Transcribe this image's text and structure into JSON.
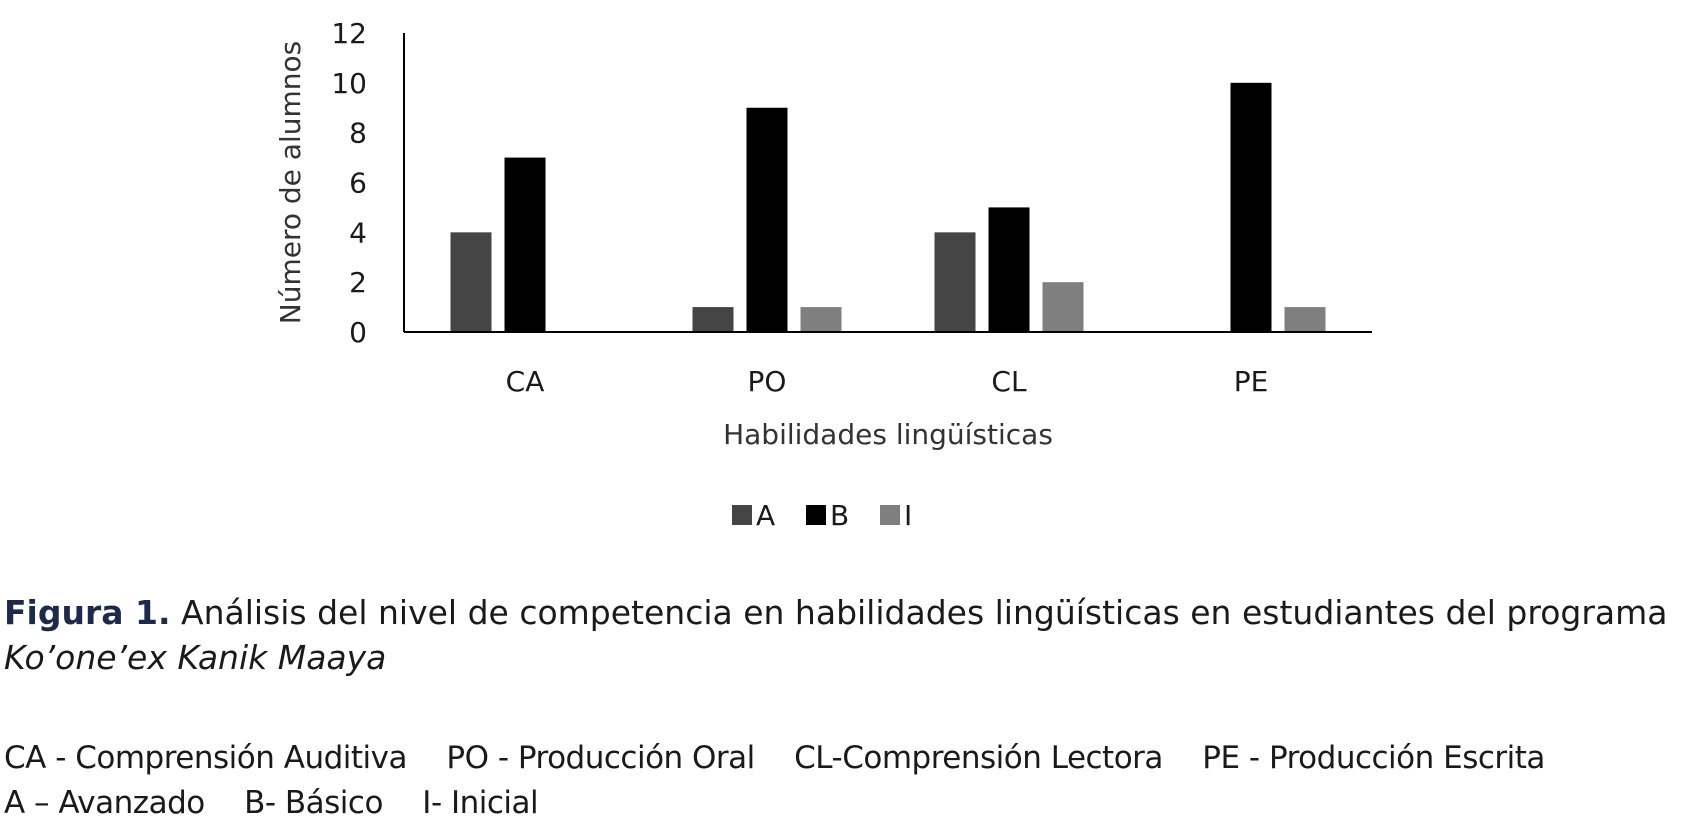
{
  "chart_data": {
    "type": "bar",
    "categories": [
      "CA",
      "PO",
      "CL",
      "PE"
    ],
    "series": [
      {
        "name": "A",
        "values": [
          4,
          1,
          4,
          0
        ],
        "color": "#454545"
      },
      {
        "name": "B",
        "values": [
          7,
          9,
          5,
          10
        ],
        "color": "#000000"
      },
      {
        "name": "I",
        "values": [
          0,
          1,
          2,
          1
        ],
        "color": "#7f7f7f"
      }
    ],
    "title": "",
    "xlabel": "Habilidades lingüísticas",
    "ylabel": "Número de alumnos",
    "ylim": [
      0,
      12
    ],
    "yticks": [
      0,
      2,
      4,
      6,
      8,
      10,
      12
    ],
    "grid": false,
    "legend_position": "bottom"
  },
  "caption": {
    "label": "Figura 1.",
    "text": "Análisis del nivel de competencia en habilidades lingüísticas en estudiantes del programa",
    "italic_text": "Ko’one’ex Kanik Maaya"
  },
  "abbreviations": {
    "skills": [
      "CA - Comprensión Auditiva",
      "PO - Producción Oral",
      "CL-Comprensión Lectora",
      "PE - Producción Escrita"
    ],
    "levels": [
      "A – Avanzado",
      "B- Básico",
      "I- Inicial"
    ]
  }
}
